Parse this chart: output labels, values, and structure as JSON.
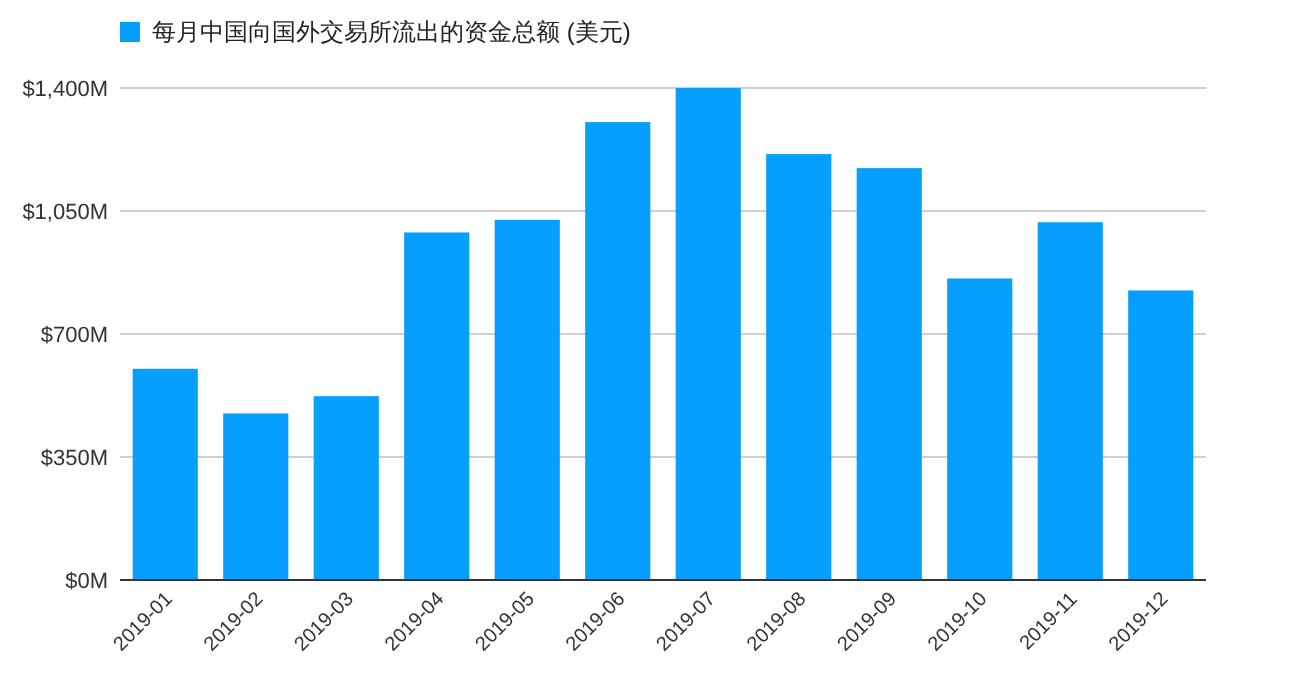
{
  "chart_data": {
    "type": "bar",
    "categories": [
      "2019-01",
      "2019-02",
      "2019-03",
      "2019-04",
      "2019-05",
      "2019-06",
      "2019-07",
      "2019-08",
      "2019-09",
      "2019-10",
      "2019-11",
      "2019-12"
    ],
    "series": [
      {
        "name": "每月中国向国外交易所流出的资金总额 (美元)",
        "color": "#069ffd",
        "values": [
          601,
          474,
          523,
          989,
          1025,
          1303,
          1400,
          1212,
          1172,
          858,
          1018,
          824
        ]
      }
    ],
    "ylim": [
      0,
      1400
    ],
    "yticks": [
      {
        "value": 0,
        "label": "$0M"
      },
      {
        "value": 350,
        "label": "$350M"
      },
      {
        "value": 700,
        "label": "$700M"
      },
      {
        "value": 1050,
        "label": "$1,050M"
      },
      {
        "value": 1400,
        "label": "$1,400M"
      }
    ],
    "grid": "y",
    "legend": "top"
  }
}
